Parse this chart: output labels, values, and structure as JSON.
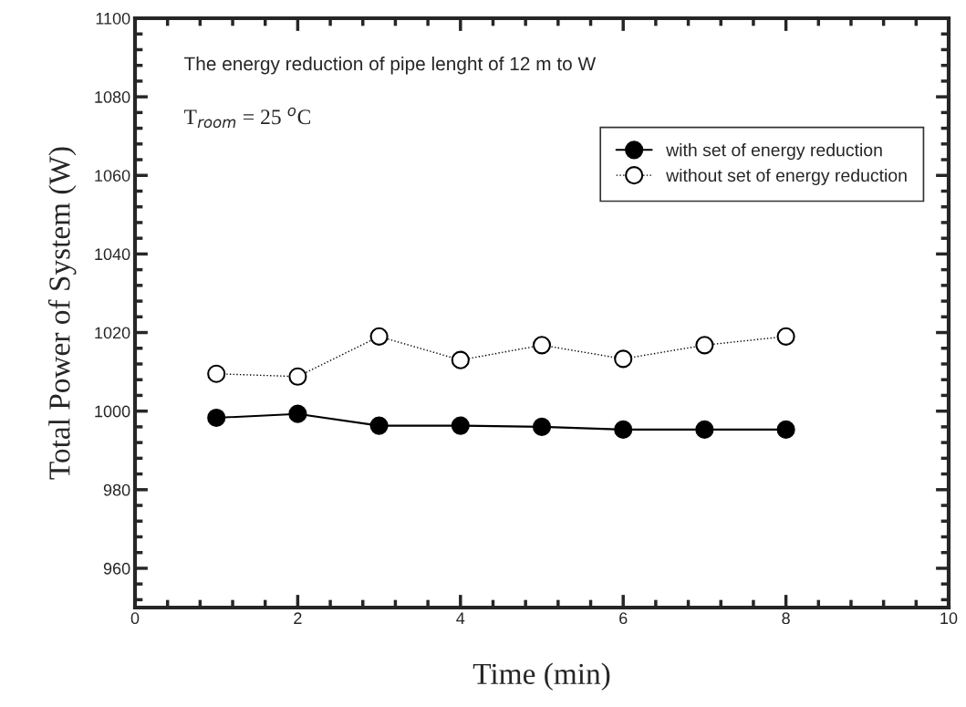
{
  "chart_data": {
    "type": "line",
    "xlabel": "Time (min)",
    "ylabel": "Total Power of System (W)",
    "x": [
      1,
      2,
      3,
      4,
      5,
      6,
      7,
      8
    ],
    "series": [
      {
        "name": "with set of energy reduction",
        "color": "#000000",
        "values": [
          998.3,
          999.3,
          996.3,
          996.3,
          996,
          995.3,
          995.3,
          995.3
        ],
        "marker": "circle",
        "line_style": "solid"
      },
      {
        "name": "without set of energy reduction",
        "color": "#000000",
        "values": [
          1009.5,
          1008.8,
          1019,
          1013,
          1016.8,
          1013.3,
          1016.8,
          1019
        ],
        "marker": "circle",
        "line_style": "dotted"
      }
    ],
    "xlim": [
      0,
      10
    ],
    "xticks": [
      0,
      2,
      4,
      6,
      8,
      10
    ],
    "ylim": [
      950,
      1100
    ],
    "yticks": [
      960,
      980,
      1000,
      1020,
      1040,
      1060,
      1080,
      1100
    ],
    "annotations": [
      "The energy reduction of pipe lenght of 12 m to W",
      "T$_{room}$ = 25 $^{o}$C"
    ],
    "legend": "top right",
    "grid": false
  }
}
